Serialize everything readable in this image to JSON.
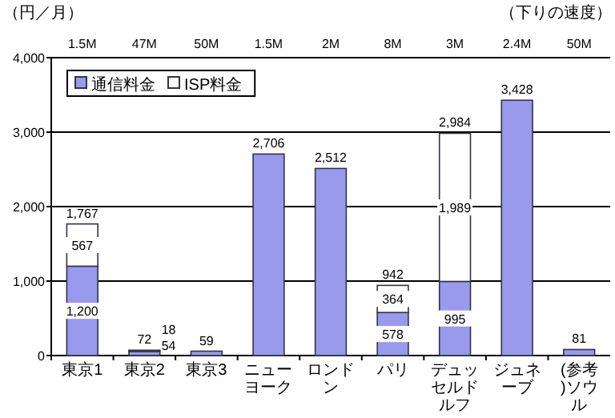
{
  "chart_data": {
    "type": "bar",
    "stacked": true,
    "ylabel": "（円／月）",
    "x2label": "（下りの速度）",
    "categories": [
      "東京1",
      "東京2",
      "東京3",
      "ニューヨーク",
      "ロンドン",
      "パリ",
      "デュッセルドルフ",
      "ジュネーブ",
      "(参考)ソウル"
    ],
    "series": [
      {
        "name": "通信料金",
        "color": "#9999ee",
        "values": [
          1200,
          54,
          59,
          2706,
          2512,
          578,
          995,
          3428,
          81
        ],
        "value_labels": [
          "1,200",
          "54",
          "59",
          "2,706",
          "2,512",
          "578",
          "995",
          "3,428",
          "81"
        ]
      },
      {
        "name": "ISP料金",
        "color": "#ffffff",
        "values": [
          567,
          18,
          null,
          null,
          null,
          364,
          1989,
          null,
          null
        ],
        "value_labels": [
          "567",
          "18",
          null,
          null,
          null,
          "364",
          "1,989",
          null,
          null
        ]
      }
    ],
    "totals": [
      "1,767",
      "72",
      null,
      null,
      null,
      "942",
      "2,984",
      null,
      null
    ],
    "ylim": [
      0,
      4000
    ],
    "yticks": [
      {
        "value": 0,
        "label": "0"
      },
      {
        "value": 1000,
        "label": "1,000"
      },
      {
        "value": 2000,
        "label": "2,000"
      },
      {
        "value": 3000,
        "label": "3,000"
      },
      {
        "value": 4000,
        "label": "4,000"
      }
    ],
    "grid": "y",
    "legend": "top left",
    "annotations": [
      "1.5M",
      "47M",
      "50M",
      "1.5M",
      "2M",
      "8M",
      "3M",
      "2.4M",
      "50M"
    ]
  }
}
